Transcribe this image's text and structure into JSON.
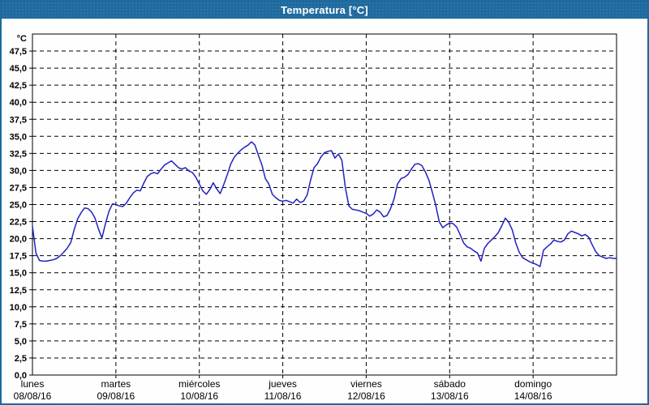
{
  "window": {
    "title": "Temperatura [°C]",
    "titlebar_color": "#1e6a9e",
    "border_color": "#1e6a9e",
    "background_color": "#fdfefd",
    "title_text_color": "#ffffff"
  },
  "chart_data": {
    "type": "line",
    "title": "Temperatura [°C]",
    "y_unit_label": "°C",
    "ylabel": "",
    "xlabel": "",
    "ylim": [
      0,
      50
    ],
    "ytick_step": 2.5,
    "ytick_labels": [
      "0,0",
      "2,5",
      "5,0",
      "7,5",
      "10,0",
      "12,5",
      "15,0",
      "17,5",
      "20,0",
      "22,5",
      "25,0",
      "27,5",
      "30,0",
      "32,5",
      "35,0",
      "37,5",
      "40,0",
      "42,5",
      "45,0",
      "47,5"
    ],
    "grid": "dashed-black",
    "line_color": "#2222c0",
    "axis_color": "#000000",
    "x_axis": {
      "hours_total": 168,
      "days": [
        {
          "name": "lunes",
          "date": "08/08/16"
        },
        {
          "name": "martes",
          "date": "09/08/16"
        },
        {
          "name": "miércoles",
          "date": "10/08/16"
        },
        {
          "name": "jueves",
          "date": "11/08/16"
        },
        {
          "name": "viernes",
          "date": "12/08/16"
        },
        {
          "name": "sábado",
          "date": "13/08/16"
        },
        {
          "name": "domingo",
          "date": "14/08/16"
        }
      ]
    },
    "series": [
      {
        "name": "Temperatura",
        "unit": "°C",
        "sampling": "hourly",
        "color": "#2222c0",
        "values": [
          21.8,
          17.9,
          16.8,
          16.7,
          16.7,
          16.8,
          16.9,
          17.1,
          17.5,
          18.0,
          18.6,
          19.4,
          21.3,
          22.9,
          23.8,
          24.5,
          24.4,
          23.9,
          23.0,
          21.4,
          20.1,
          22.2,
          24.0,
          25.1,
          25.0,
          24.8,
          24.7,
          25.2,
          26.0,
          26.7,
          27.1,
          27.0,
          28.1,
          29.1,
          29.5,
          29.7,
          29.5,
          30.2,
          30.8,
          31.1,
          31.4,
          30.9,
          30.4,
          30.2,
          30.4,
          29.9,
          29.7,
          29.0,
          28.0,
          27.0,
          26.5,
          27.2,
          28.2,
          27.3,
          26.6,
          27.9,
          29.3,
          30.9,
          31.9,
          32.5,
          33.0,
          33.4,
          33.7,
          34.2,
          33.7,
          32.2,
          30.8,
          28.8,
          28.0,
          26.5,
          26.0,
          25.6,
          25.5,
          25.6,
          25.4,
          25.2,
          25.8,
          25.3,
          25.5,
          26.4,
          28.6,
          30.4,
          31.0,
          32.0,
          32.6,
          32.8,
          32.9,
          31.8,
          32.4,
          31.5,
          27.5,
          24.8,
          24.3,
          24.2,
          24.1,
          23.9,
          23.7,
          23.3,
          23.6,
          24.2,
          23.9,
          23.2,
          23.4,
          24.4,
          25.8,
          28.0,
          28.8,
          29.0,
          29.4,
          30.2,
          30.9,
          31.0,
          30.7,
          29.8,
          28.6,
          26.8,
          24.9,
          22.5,
          21.6,
          22.0,
          22.3,
          22.2,
          21.7,
          20.6,
          19.4,
          18.8,
          18.6,
          18.2,
          17.9,
          16.7,
          18.6,
          19.3,
          19.8,
          20.3,
          20.9,
          21.9,
          23.0,
          22.4,
          21.3,
          19.4,
          18.0,
          17.2,
          16.9,
          16.6,
          16.4,
          16.2,
          15.9,
          18.3,
          18.8,
          19.2,
          19.8,
          19.6,
          19.5,
          19.8,
          20.7,
          21.1,
          20.9,
          20.7,
          20.4,
          20.6,
          20.2,
          19.1,
          18.1,
          17.5,
          17.3,
          17.1,
          17.2,
          17.1,
          17.1
        ]
      }
    ]
  }
}
